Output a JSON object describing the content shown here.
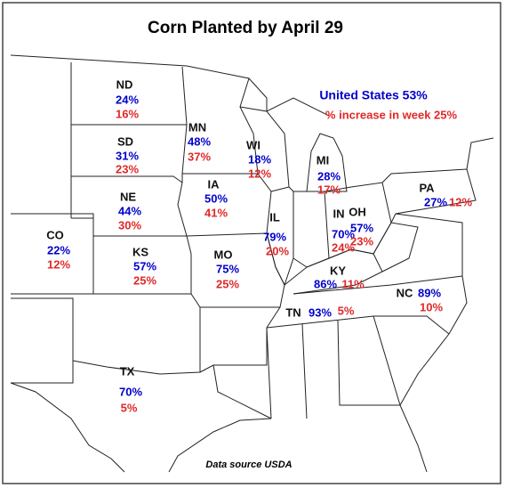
{
  "title": "Corn Planted by April 29",
  "summary": {
    "planted": "United States 53%",
    "increase": "% increase in week 25%"
  },
  "source": "Data source USDA",
  "states": [
    {
      "abbr": "ND",
      "planted": "24%",
      "increase": "16%"
    },
    {
      "abbr": "SD",
      "planted": "31%",
      "increase": "23%"
    },
    {
      "abbr": "NE",
      "planted": "44%",
      "increase": "30%"
    },
    {
      "abbr": "CO",
      "planted": "22%",
      "increase": "12%"
    },
    {
      "abbr": "KS",
      "planted": "57%",
      "increase": "25%"
    },
    {
      "abbr": "TX",
      "planted": "70%",
      "increase": "5%"
    },
    {
      "abbr": "MN",
      "planted": "48%",
      "increase": "37%"
    },
    {
      "abbr": "IA",
      "planted": "50%",
      "increase": "41%"
    },
    {
      "abbr": "MO",
      "planted": "75%",
      "increase": "25%"
    },
    {
      "abbr": "WI",
      "planted": "18%",
      "increase": "12%"
    },
    {
      "abbr": "IL",
      "planted": "79%",
      "increase": "20%"
    },
    {
      "abbr": "MI",
      "planted": "28%",
      "increase": "17%"
    },
    {
      "abbr": "IN",
      "planted": "70%",
      "increase": "24%"
    },
    {
      "abbr": "OH",
      "planted": "57%",
      "increase": "23%"
    },
    {
      "abbr": "PA",
      "planted": "27%",
      "increase": "12%"
    },
    {
      "abbr": "KY",
      "planted": "86%",
      "increase": "11%"
    },
    {
      "abbr": "TN",
      "planted": "93%",
      "increase": "5%"
    },
    {
      "abbr": "NC",
      "planted": "89%",
      "increase": "10%"
    }
  ]
}
